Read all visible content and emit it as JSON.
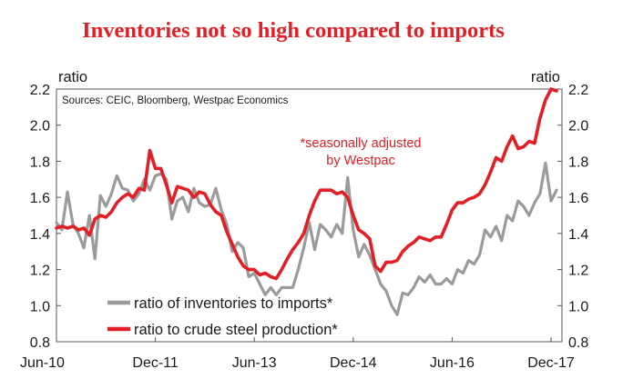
{
  "chart_data": {
    "type": "line",
    "title": "Inventories not so high compared to imports",
    "source": "Sources: CEIC, Bloomberg, Westpac Economics",
    "annotation": [
      "*seasonally adjusted",
      "by Westpac"
    ],
    "ylabel_left": "ratio",
    "ylabel_right": "ratio",
    "ylim": [
      0.8,
      2.2
    ],
    "yticks": [
      0.8,
      1.0,
      1.2,
      1.4,
      1.6,
      1.8,
      2.0,
      2.2
    ],
    "ytick_labels": [
      "0.8",
      "1.0",
      "1.2",
      "1.4",
      "1.6",
      "1.8",
      "2.0",
      "2.2"
    ],
    "xlim": [
      2010.417,
      2018.083
    ],
    "xticks": [
      {
        "value": 2010.417,
        "label": "Jun-10"
      },
      {
        "value": 2011.917,
        "label": "Dec-11"
      },
      {
        "value": 2013.417,
        "label": "Jun-13"
      },
      {
        "value": 2014.917,
        "label": "Dec-14"
      },
      {
        "value": 2016.417,
        "label": "Jun-16"
      },
      {
        "value": 2017.917,
        "label": "Dec-17"
      }
    ],
    "legend_position": "bottom-left",
    "grid": false,
    "series": [
      {
        "name": "ratio of inventories to imports*",
        "color": "#9b9b9b",
        "points": [
          [
            2010.417,
            1.46
          ],
          [
            2010.5,
            1.42
          ],
          [
            2010.583,
            1.63
          ],
          [
            2010.667,
            1.45
          ],
          [
            2010.75,
            1.4
          ],
          [
            2010.833,
            1.32
          ],
          [
            2010.917,
            1.5
          ],
          [
            2011.0,
            1.26
          ],
          [
            2011.083,
            1.61
          ],
          [
            2011.167,
            1.55
          ],
          [
            2011.25,
            1.62
          ],
          [
            2011.333,
            1.72
          ],
          [
            2011.417,
            1.65
          ],
          [
            2011.5,
            1.64
          ],
          [
            2011.583,
            1.58
          ],
          [
            2011.667,
            1.62
          ],
          [
            2011.75,
            1.7
          ],
          [
            2011.833,
            1.64
          ],
          [
            2011.917,
            1.72
          ],
          [
            2012.0,
            1.73
          ],
          [
            2012.083,
            1.7
          ],
          [
            2012.167,
            1.48
          ],
          [
            2012.25,
            1.58
          ],
          [
            2012.333,
            1.6
          ],
          [
            2012.417,
            1.52
          ],
          [
            2012.5,
            1.65
          ],
          [
            2012.583,
            1.57
          ],
          [
            2012.667,
            1.55
          ],
          [
            2012.75,
            1.56
          ],
          [
            2012.833,
            1.65
          ],
          [
            2012.917,
            1.53
          ],
          [
            2013.0,
            1.45
          ],
          [
            2013.083,
            1.3
          ],
          [
            2013.167,
            1.35
          ],
          [
            2013.25,
            1.32
          ],
          [
            2013.333,
            1.16
          ],
          [
            2013.417,
            1.18
          ],
          [
            2013.5,
            1.12
          ],
          [
            2013.583,
            1.06
          ],
          [
            2013.667,
            1.1
          ],
          [
            2013.75,
            1.06
          ],
          [
            2013.833,
            1.1
          ],
          [
            2013.917,
            1.1
          ],
          [
            2014.0,
            1.1
          ],
          [
            2014.083,
            1.2
          ],
          [
            2014.167,
            1.32
          ],
          [
            2014.25,
            1.46
          ],
          [
            2014.333,
            1.31
          ],
          [
            2014.417,
            1.45
          ],
          [
            2014.5,
            1.42
          ],
          [
            2014.583,
            1.38
          ],
          [
            2014.667,
            1.45
          ],
          [
            2014.75,
            1.4
          ],
          [
            2014.833,
            1.71
          ],
          [
            2014.917,
            1.42
          ],
          [
            2015.0,
            1.27
          ],
          [
            2015.083,
            1.34
          ],
          [
            2015.167,
            1.28
          ],
          [
            2015.25,
            1.2
          ],
          [
            2015.333,
            1.12
          ],
          [
            2015.417,
            1.08
          ],
          [
            2015.5,
            1.0
          ],
          [
            2015.583,
            0.95
          ],
          [
            2015.667,
            1.07
          ],
          [
            2015.75,
            1.06
          ],
          [
            2015.833,
            1.1
          ],
          [
            2015.917,
            1.16
          ],
          [
            2016.0,
            1.13
          ],
          [
            2016.083,
            1.17
          ],
          [
            2016.167,
            1.12
          ],
          [
            2016.25,
            1.12
          ],
          [
            2016.333,
            1.15
          ],
          [
            2016.417,
            1.12
          ],
          [
            2016.5,
            1.2
          ],
          [
            2016.583,
            1.18
          ],
          [
            2016.667,
            1.25
          ],
          [
            2016.75,
            1.23
          ],
          [
            2016.833,
            1.28
          ],
          [
            2016.917,
            1.42
          ],
          [
            2017.0,
            1.38
          ],
          [
            2017.083,
            1.44
          ],
          [
            2017.167,
            1.36
          ],
          [
            2017.25,
            1.5
          ],
          [
            2017.333,
            1.47
          ],
          [
            2017.417,
            1.58
          ],
          [
            2017.5,
            1.55
          ],
          [
            2017.583,
            1.5
          ],
          [
            2017.667,
            1.57
          ],
          [
            2017.75,
            1.62
          ],
          [
            2017.833,
            1.79
          ],
          [
            2017.917,
            1.58
          ],
          [
            2018.0,
            1.64
          ]
        ]
      },
      {
        "name": "ratio to crude steel production*",
        "color": "#e41e25",
        "points": [
          [
            2010.417,
            1.43
          ],
          [
            2010.5,
            1.44
          ],
          [
            2010.583,
            1.43
          ],
          [
            2010.667,
            1.44
          ],
          [
            2010.75,
            1.42
          ],
          [
            2010.833,
            1.43
          ],
          [
            2010.917,
            1.39
          ],
          [
            2011.0,
            1.48
          ],
          [
            2011.083,
            1.5
          ],
          [
            2011.167,
            1.49
          ],
          [
            2011.25,
            1.52
          ],
          [
            2011.333,
            1.57
          ],
          [
            2011.417,
            1.6
          ],
          [
            2011.5,
            1.62
          ],
          [
            2011.583,
            1.6
          ],
          [
            2011.667,
            1.65
          ],
          [
            2011.75,
            1.64
          ],
          [
            2011.833,
            1.86
          ],
          [
            2011.917,
            1.76
          ],
          [
            2012.0,
            1.76
          ],
          [
            2012.083,
            1.67
          ],
          [
            2012.167,
            1.57
          ],
          [
            2012.25,
            1.66
          ],
          [
            2012.333,
            1.65
          ],
          [
            2012.417,
            1.64
          ],
          [
            2012.5,
            1.6
          ],
          [
            2012.583,
            1.63
          ],
          [
            2012.667,
            1.62
          ],
          [
            2012.75,
            1.56
          ],
          [
            2012.833,
            1.52
          ],
          [
            2012.917,
            1.5
          ],
          [
            2013.0,
            1.41
          ],
          [
            2013.083,
            1.34
          ],
          [
            2013.167,
            1.27
          ],
          [
            2013.25,
            1.22
          ],
          [
            2013.333,
            1.2
          ],
          [
            2013.417,
            1.2
          ],
          [
            2013.5,
            1.17
          ],
          [
            2013.583,
            1.18
          ],
          [
            2013.667,
            1.16
          ],
          [
            2013.75,
            1.15
          ],
          [
            2013.833,
            1.2
          ],
          [
            2013.917,
            1.26
          ],
          [
            2014.0,
            1.31
          ],
          [
            2014.083,
            1.35
          ],
          [
            2014.167,
            1.4
          ],
          [
            2014.25,
            1.5
          ],
          [
            2014.333,
            1.58
          ],
          [
            2014.417,
            1.64
          ],
          [
            2014.5,
            1.64
          ],
          [
            2014.583,
            1.64
          ],
          [
            2014.667,
            1.62
          ],
          [
            2014.75,
            1.63
          ],
          [
            2014.833,
            1.6
          ],
          [
            2014.917,
            1.5
          ],
          [
            2015.0,
            1.42
          ],
          [
            2015.083,
            1.4
          ],
          [
            2015.167,
            1.37
          ],
          [
            2015.25,
            1.22
          ],
          [
            2015.333,
            1.19
          ],
          [
            2015.417,
            1.24
          ],
          [
            2015.5,
            1.24
          ],
          [
            2015.583,
            1.25
          ],
          [
            2015.667,
            1.3
          ],
          [
            2015.75,
            1.33
          ],
          [
            2015.833,
            1.35
          ],
          [
            2015.917,
            1.38
          ],
          [
            2016.0,
            1.37
          ],
          [
            2016.083,
            1.36
          ],
          [
            2016.167,
            1.38
          ],
          [
            2016.25,
            1.38
          ],
          [
            2016.333,
            1.45
          ],
          [
            2016.417,
            1.53
          ],
          [
            2016.5,
            1.57
          ],
          [
            2016.583,
            1.57
          ],
          [
            2016.667,
            1.59
          ],
          [
            2016.75,
            1.6
          ],
          [
            2016.833,
            1.62
          ],
          [
            2016.917,
            1.67
          ],
          [
            2017.0,
            1.74
          ],
          [
            2017.083,
            1.82
          ],
          [
            2017.167,
            1.8
          ],
          [
            2017.25,
            1.88
          ],
          [
            2017.333,
            1.94
          ],
          [
            2017.417,
            1.87
          ],
          [
            2017.5,
            1.88
          ],
          [
            2017.583,
            1.91
          ],
          [
            2017.667,
            1.9
          ],
          [
            2017.75,
            2.04
          ],
          [
            2017.833,
            2.14
          ],
          [
            2017.917,
            2.2
          ],
          [
            2018.0,
            2.19
          ]
        ]
      }
    ]
  }
}
